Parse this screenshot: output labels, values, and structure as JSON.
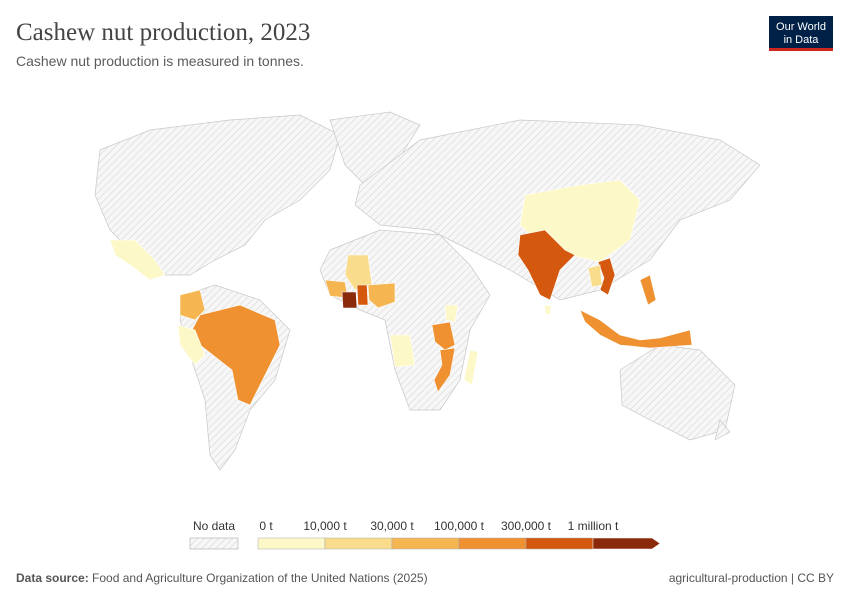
{
  "header": {
    "title": "Cashew nut production, 2023",
    "subtitle": "Cashew nut production is measured in tonnes.",
    "logo": [
      "Our World",
      "in Data"
    ]
  },
  "legend": {
    "no_data": "No data",
    "bins": [
      {
        "label": "0 t",
        "color": "#fdf8c8"
      },
      {
        "label": "10,000 t",
        "color": "#f9dc8c"
      },
      {
        "label": "30,000 t",
        "color": "#f5b652"
      },
      {
        "label": "100,000 t",
        "color": "#ef9131"
      },
      {
        "label": "300,000 t",
        "color": "#d4590f"
      },
      {
        "label": "1 million t",
        "color": "#8a2a0a"
      }
    ]
  },
  "footer": {
    "source_label": "Data source:",
    "source": "Food and Agriculture Organization of the United Nations (2025)",
    "license": "agricultural-production | CC BY"
  }
}
